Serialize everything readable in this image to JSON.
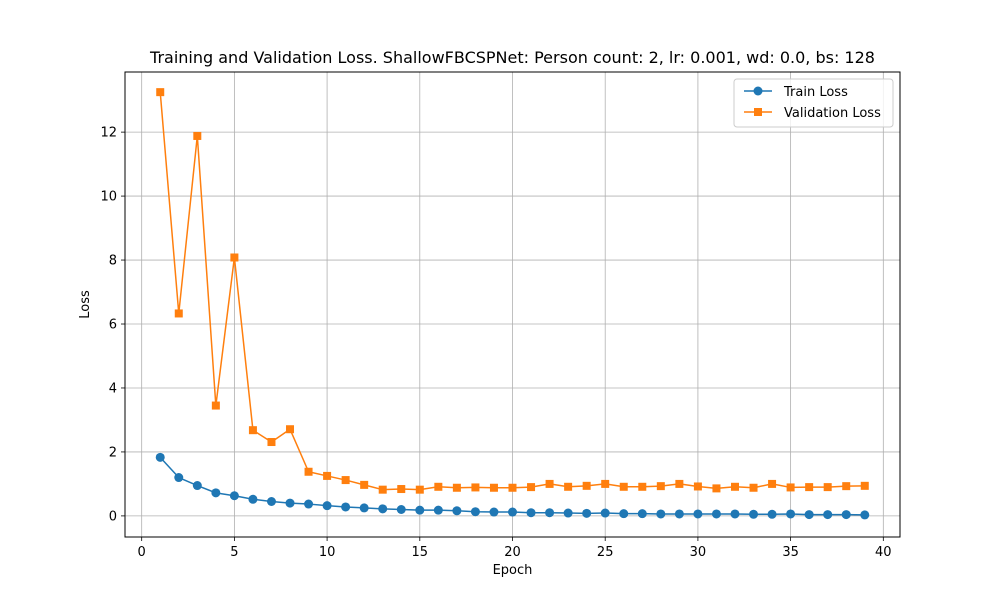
{
  "chart_data": {
    "type": "line",
    "title": "Training and Validation Loss. ShallowFBCSPNet: Person count: 2, lr: 0.001, wd: 0.0, bs: 128",
    "xlabel": "Epoch",
    "ylabel": "Loss",
    "xlim": [
      -0.9,
      40.9
    ],
    "ylim": [
      -0.66,
      13.88
    ],
    "xticks": [
      0,
      5,
      10,
      15,
      20,
      25,
      30,
      35,
      40
    ],
    "yticks": [
      0,
      2,
      4,
      6,
      8,
      10,
      12
    ],
    "grid": true,
    "legend_position": "top-right",
    "x": [
      1,
      2,
      3,
      4,
      5,
      6,
      7,
      8,
      9,
      10,
      11,
      12,
      13,
      14,
      15,
      16,
      17,
      18,
      19,
      20,
      21,
      22,
      23,
      24,
      25,
      26,
      27,
      28,
      29,
      30,
      31,
      32,
      33,
      34,
      35,
      36,
      37,
      38,
      39
    ],
    "series": [
      {
        "name": "Train Loss",
        "color": "#1f77b4",
        "marker": "circle",
        "values": [
          1.83,
          1.2,
          0.95,
          0.72,
          0.63,
          0.52,
          0.45,
          0.4,
          0.37,
          0.32,
          0.28,
          0.25,
          0.22,
          0.2,
          0.18,
          0.18,
          0.16,
          0.13,
          0.12,
          0.12,
          0.1,
          0.1,
          0.09,
          0.08,
          0.09,
          0.07,
          0.07,
          0.06,
          0.06,
          0.06,
          0.06,
          0.06,
          0.05,
          0.05,
          0.06,
          0.04,
          0.04,
          0.04,
          0.03
        ]
      },
      {
        "name": "Validation Loss",
        "color": "#ff7f0e",
        "marker": "square",
        "values": [
          13.25,
          6.33,
          11.88,
          3.45,
          8.08,
          2.68,
          2.31,
          2.71,
          1.38,
          1.25,
          1.12,
          0.97,
          0.82,
          0.84,
          0.82,
          0.91,
          0.88,
          0.89,
          0.88,
          0.88,
          0.9,
          1.0,
          0.91,
          0.94,
          1.0,
          0.91,
          0.91,
          0.93,
          1.0,
          0.92,
          0.86,
          0.91,
          0.88,
          1.0,
          0.89,
          0.9,
          0.9,
          0.93,
          0.94
        ]
      }
    ]
  }
}
